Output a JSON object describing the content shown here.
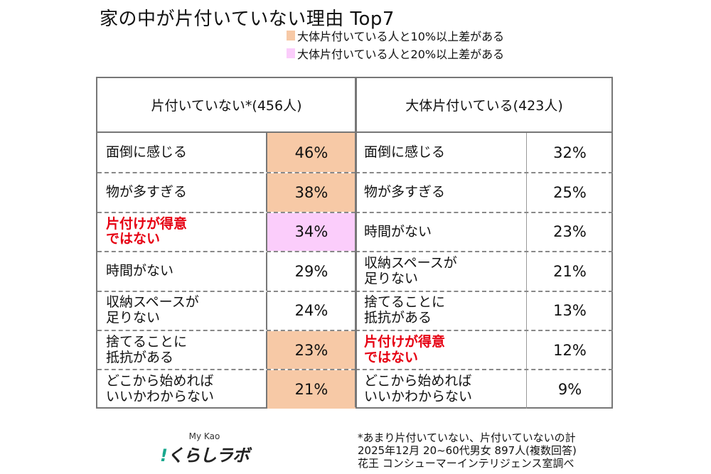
{
  "title": "家の中が片付いていない理由  Top7",
  "legend": [
    {
      "label": "大体片付いている人と10%以上差がある",
      "color": "#f7c9a6"
    },
    {
      "label": "大体片付いている人と20%以上差がある",
      "color": "#fbcdfb"
    }
  ],
  "chart_data": {
    "type": "table",
    "title": "家の中が片付いていない理由  Top7",
    "columns": [
      {
        "header": "片付いていない*(456人)",
        "rows": [
          {
            "label": "面倒に感じる",
            "value": "46%",
            "highlight": "10"
          },
          {
            "label": "物が多すぎる",
            "value": "38%",
            "highlight": "10"
          },
          {
            "label": "片付けが得意\nではない",
            "value": "34%",
            "highlight": "20",
            "emphasis": true
          },
          {
            "label": "時間がない",
            "value": "29%",
            "highlight": ""
          },
          {
            "label": "収納スペースが\n足りない",
            "value": "24%",
            "highlight": ""
          },
          {
            "label": "捨てることに\n抵抗がある",
            "value": "23%",
            "highlight": "10"
          },
          {
            "label": "どこから始めれば\nいいかわからない",
            "value": "21%",
            "highlight": "10"
          }
        ]
      },
      {
        "header": "大体片付いている(423人)",
        "rows": [
          {
            "label": "面倒に感じる",
            "value": "32%",
            "highlight": ""
          },
          {
            "label": "物が多すぎる",
            "value": "25%",
            "highlight": ""
          },
          {
            "label": "時間がない",
            "value": "23%",
            "highlight": ""
          },
          {
            "label": "収納スペースが\n足りない",
            "value": "21%",
            "highlight": ""
          },
          {
            "label": "捨てることに\n抵抗がある",
            "value": "13%",
            "highlight": ""
          },
          {
            "label": "片付けが得意\nではない",
            "value": "12%",
            "highlight": "",
            "emphasis": true
          },
          {
            "label": "どこから始めれば\nいいかわからない",
            "value": "9%",
            "highlight": ""
          }
        ]
      }
    ]
  },
  "logo": {
    "top": "My Kao",
    "main": "!くらしラボ"
  },
  "notes": [
    "*あまり片付いていない、片付いていないの計",
    "2025年12月 20~60代男女 897人(複数回答)",
    "花王 コンシューマーインテリジェンス室調べ"
  ]
}
